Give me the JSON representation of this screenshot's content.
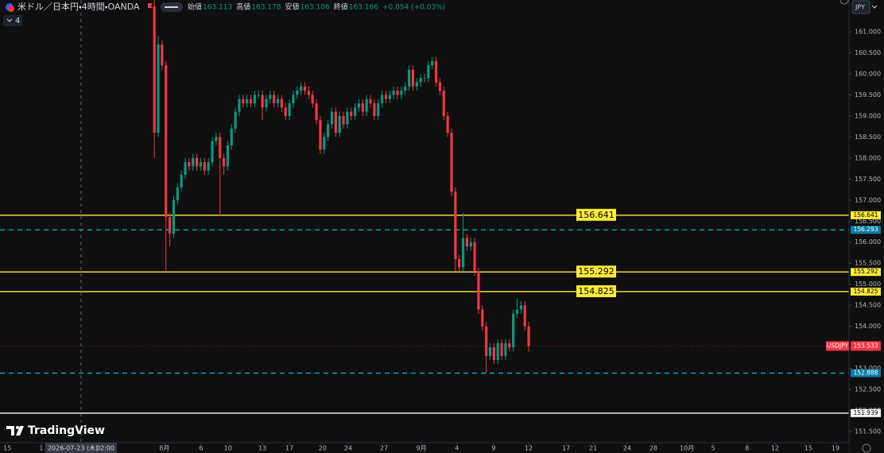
{
  "header": {
    "title": "米ドル／日本円・4時間・OANDA",
    "ohlc": [
      {
        "label": "始値",
        "value": 163.113
      },
      {
        "label": "高値",
        "value": 163.178
      },
      {
        "label": "安値",
        "value": 163.106
      },
      {
        "label": "終値",
        "value": 163.166
      }
    ],
    "change": "+0.054 (+0.03%)",
    "indicator_count": 4,
    "currency": "JPY"
  },
  "logo": "TradingView",
  "chart_data": {
    "type": "candlestick",
    "x": [
      0,
      1,
      2,
      3,
      4,
      5,
      6,
      7,
      8,
      9,
      10,
      11,
      12,
      13,
      14,
      15,
      16,
      17,
      18,
      19,
      20,
      21,
      22,
      23,
      24,
      25,
      26,
      27,
      28,
      29,
      30,
      31,
      32,
      33,
      34,
      35,
      36,
      37,
      38,
      39,
      40,
      41,
      42,
      43,
      44,
      45,
      46,
      47,
      48,
      49,
      50,
      51,
      52,
      53,
      54,
      55,
      56,
      57,
      58,
      59,
      60,
      61,
      62,
      63,
      64,
      65,
      66,
      67,
      68,
      69,
      70,
      71,
      72,
      73,
      74,
      75,
      76,
      77,
      78,
      79,
      80,
      81,
      82,
      83,
      84,
      85,
      86,
      87,
      88,
      89,
      90,
      91,
      92,
      93,
      94,
      95,
      96,
      97
    ],
    "open": [
      161.6,
      158.6,
      160.7,
      160.2,
      156.6,
      156.2,
      157.0,
      157.3,
      157.6,
      157.9,
      157.8,
      158.0,
      157.8,
      157.9,
      157.7,
      157.9,
      158.4,
      158.5,
      158.0,
      157.8,
      158.3,
      158.7,
      159.1,
      159.4,
      159.3,
      159.4,
      159.3,
      159.5,
      159.5,
      159.2,
      159.4,
      159.5,
      159.3,
      159.4,
      159.2,
      159.0,
      159.3,
      159.5,
      159.6,
      159.7,
      159.6,
      159.5,
      159.3,
      158.9,
      158.2,
      158.5,
      158.8,
      159.1,
      158.6,
      159.0,
      158.8,
      159.1,
      159.0,
      159.2,
      159.3,
      159.1,
      159.4,
      159.3,
      159.0,
      159.3,
      159.5,
      159.4,
      159.5,
      159.6,
      159.5,
      159.6,
      159.7,
      160.1,
      159.7,
      159.8,
      159.9,
      159.9,
      160.2,
      160.3,
      159.8,
      159.6,
      159.0,
      158.6,
      157.2,
      155.6,
      155.4,
      156.1,
      155.9,
      156.0,
      155.3,
      154.4,
      154.0,
      153.3,
      153.5,
      153.2,
      153.6,
      153.3,
      153.6,
      153.5,
      154.3,
      154.4,
      154.5,
      154.0
    ],
    "high": [
      161.75,
      160.9,
      160.8,
      160.3,
      156.7,
      157.1,
      157.4,
      157.7,
      158.0,
      158.0,
      158.1,
      158.1,
      158.0,
      158.0,
      158.0,
      158.5,
      158.6,
      158.6,
      158.1,
      158.4,
      158.8,
      159.2,
      159.5,
      159.5,
      159.5,
      159.5,
      159.6,
      159.6,
      159.6,
      159.5,
      159.6,
      159.6,
      159.5,
      159.5,
      159.3,
      159.4,
      159.6,
      159.7,
      159.8,
      159.8,
      159.7,
      159.6,
      159.4,
      159.0,
      158.6,
      158.9,
      159.2,
      159.2,
      159.1,
      159.1,
      159.2,
      159.2,
      159.3,
      159.4,
      159.4,
      159.5,
      159.5,
      159.4,
      159.4,
      159.6,
      159.6,
      159.6,
      159.7,
      159.7,
      159.7,
      159.8,
      160.2,
      160.2,
      159.9,
      160.0,
      160.0,
      160.3,
      160.4,
      160.4,
      159.9,
      159.7,
      159.1,
      158.7,
      157.3,
      155.7,
      156.7,
      156.2,
      156.1,
      156.1,
      155.4,
      154.5,
      154.1,
      153.6,
      153.6,
      153.7,
      153.7,
      153.7,
      153.7,
      154.4,
      154.65,
      154.6,
      154.6,
      154.1
    ],
    "low": [
      158.0,
      158.5,
      160.1,
      155.29,
      155.9,
      156.1,
      156.9,
      157.2,
      157.5,
      157.7,
      157.7,
      157.7,
      157.7,
      157.6,
      157.6,
      157.8,
      158.3,
      156.64,
      157.6,
      157.7,
      158.2,
      158.6,
      159.0,
      159.2,
      159.2,
      159.2,
      159.2,
      159.4,
      158.9,
      159.1,
      159.3,
      159.2,
      159.2,
      159.1,
      158.9,
      158.9,
      159.2,
      159.4,
      159.5,
      159.5,
      159.4,
      159.2,
      158.8,
      158.1,
      158.1,
      158.4,
      158.7,
      158.5,
      158.5,
      158.7,
      158.7,
      158.9,
      158.9,
      159.1,
      159.0,
      159.0,
      159.2,
      158.9,
      158.9,
      159.2,
      159.3,
      159.3,
      159.4,
      159.4,
      159.4,
      159.5,
      159.6,
      159.6,
      159.6,
      159.7,
      159.8,
      159.8,
      160.1,
      159.7,
      159.5,
      158.9,
      158.5,
      157.1,
      155.3,
      155.3,
      155.3,
      155.8,
      155.8,
      155.2,
      154.3,
      153.9,
      152.888,
      153.2,
      153.1,
      153.1,
      153.2,
      153.2,
      153.4,
      153.4,
      154.2,
      154.3,
      153.9,
      153.4
    ],
    "close": [
      158.6,
      160.7,
      160.2,
      156.6,
      156.2,
      157.0,
      157.3,
      157.6,
      157.9,
      157.8,
      158.0,
      157.8,
      157.9,
      157.7,
      157.9,
      158.4,
      158.5,
      158.0,
      157.8,
      158.3,
      158.7,
      159.1,
      159.4,
      159.3,
      159.4,
      159.3,
      159.5,
      159.5,
      159.2,
      159.4,
      159.5,
      159.3,
      159.4,
      159.2,
      159.0,
      159.3,
      159.5,
      159.6,
      159.7,
      159.6,
      159.5,
      159.3,
      158.9,
      158.2,
      158.5,
      158.8,
      159.1,
      158.6,
      159.0,
      158.8,
      159.1,
      159.0,
      159.2,
      159.3,
      159.1,
      159.4,
      159.3,
      159.0,
      159.3,
      159.5,
      159.4,
      159.5,
      159.6,
      159.5,
      159.6,
      159.7,
      160.1,
      159.7,
      159.8,
      159.9,
      159.9,
      160.2,
      160.3,
      159.8,
      159.6,
      159.0,
      158.6,
      157.2,
      155.6,
      155.4,
      156.1,
      155.9,
      156.0,
      155.3,
      154.4,
      154.0,
      153.3,
      153.5,
      153.2,
      153.6,
      153.3,
      153.6,
      153.5,
      154.3,
      154.4,
      154.5,
      154.0,
      153.533
    ],
    "up_color": "#089981",
    "down_color": "#f23645",
    "xlim": [
      -40,
      180
    ],
    "ylim": [
      151.236,
      161.755
    ],
    "xticks": [
      {
        "value": -38.1,
        "label": "15"
      },
      {
        "value": -29.3,
        "label": "1"
      },
      {
        "value": 2.6,
        "label": "8月"
      },
      {
        "value": 12.1,
        "label": "6"
      },
      {
        "value": 19.1,
        "label": "10"
      },
      {
        "value": 28,
        "label": "13"
      },
      {
        "value": 35,
        "label": "17"
      },
      {
        "value": 43.6,
        "label": "20"
      },
      {
        "value": 50.2,
        "label": "24"
      },
      {
        "value": 59.5,
        "label": "27"
      },
      {
        "value": 69.2,
        "label": "9月"
      },
      {
        "value": 78.4,
        "label": "4"
      },
      {
        "value": 87.9,
        "label": "9"
      },
      {
        "value": 97,
        "label": "12"
      },
      {
        "value": 106.7,
        "label": "17"
      },
      {
        "value": 113.7,
        "label": "21"
      },
      {
        "value": 122.5,
        "label": "24"
      },
      {
        "value": 129.3,
        "label": "28"
      },
      {
        "value": 138,
        "label": "10月"
      },
      {
        "value": 144.8,
        "label": "5"
      },
      {
        "value": 153.6,
        "label": "8"
      },
      {
        "value": 160.8,
        "label": "12"
      },
      {
        "value": 169.5,
        "label": "15"
      },
      {
        "value": 176.5,
        "label": "19"
      }
    ],
    "yticks": [
      {
        "value": 161,
        "label": "161.000"
      },
      {
        "value": 160.5,
        "label": "160.500"
      },
      {
        "value": 160,
        "label": "160.000"
      },
      {
        "value": 159.5,
        "label": "159.500"
      },
      {
        "value": 159,
        "label": "159.000"
      },
      {
        "value": 158.5,
        "label": "158.500"
      },
      {
        "value": 158,
        "label": "158.000"
      },
      {
        "value": 157.5,
        "label": "157.500"
      },
      {
        "value": 157,
        "label": "157.000"
      },
      {
        "value": 156.5,
        "label": "156.500"
      },
      {
        "value": 156,
        "label": "156.000"
      },
      {
        "value": 155.5,
        "label": "155.500"
      },
      {
        "value": 155,
        "label": "155.000"
      },
      {
        "value": 154.5,
        "label": "154.500"
      },
      {
        "value": 154,
        "label": "154.000"
      },
      {
        "value": 153.5,
        "label": "153.500"
      },
      {
        "value": 153,
        "label": "153.000"
      },
      {
        "value": 152.5,
        "label": "152.500"
      },
      {
        "value": 152,
        "label": "152.000"
      },
      {
        "value": 151.5,
        "label": "151.500"
      }
    ],
    "levels": [
      {
        "value": 156.641,
        "color": "#ffeb3b",
        "style": "solid",
        "tag": true
      },
      {
        "value": 156.293,
        "color": "#00bcd4",
        "style": "dashed",
        "tag": false
      },
      {
        "value": 155.292,
        "color": "#ffeb3b",
        "style": "solid",
        "tag": true
      },
      {
        "value": 154.825,
        "color": "#ffeb3b",
        "style": "solid",
        "tag": true
      },
      {
        "value": 152.888,
        "color": "#00bcd4",
        "style": "dashed",
        "tag": false
      },
      {
        "value": 151.939,
        "color": "#ffffff",
        "style": "solid",
        "tag": false
      }
    ],
    "last_price": {
      "name": "USDJPY",
      "value": 153.533,
      "color": "#f23645"
    },
    "crosshair": {
      "x": -19,
      "date": "2026-07-23 (木)",
      "time": "02:00"
    }
  }
}
